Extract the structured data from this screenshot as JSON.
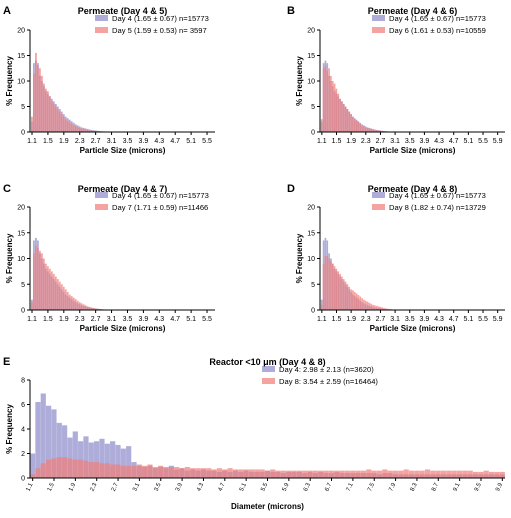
{
  "chart_data": [
    {
      "panel": "A",
      "title": "Permeate (Day 4 & 5)",
      "type": "bar",
      "ylabel": "% Frequency",
      "xlabel": "Particle  Size  (microns)",
      "xlim": [
        1.05,
        5.7
      ],
      "ylim": [
        0,
        20
      ],
      "yticks": [
        "0",
        "5",
        "10",
        "15",
        "20"
      ],
      "xticks": [
        "1.1",
        "1.5",
        "1.9",
        "2.3",
        "2.7",
        "3.1",
        "3.5",
        "3.9",
        "4.3",
        "4.7",
        "5.1",
        "5.5"
      ],
      "bin_width": 0.05,
      "x_start": 1.1,
      "series": [
        {
          "name": "Day 4 (1.65 ± 0.67) n=15773",
          "color": "#8f8ccb",
          "values": [
            2,
            13.5,
            14,
            13.5,
            11,
            10,
            9,
            8,
            7.5,
            7,
            6.5,
            6,
            5.5,
            5,
            4.5,
            4,
            3.5,
            3,
            2.7,
            2.4,
            2.1,
            1.8,
            1.5,
            1.3,
            1.1,
            0.9,
            0.8,
            0.7,
            0.6,
            0.5,
            0.4,
            0.35,
            0.3,
            0.25,
            0.2,
            0.15,
            0.12,
            0.1,
            0.08,
            0.06
          ]
        },
        {
          "name": "Day 5 (1.59 ± 0.53) n= 3597",
          "color": "#f07f7a",
          "values": [
            3,
            11.5,
            15.5,
            13,
            12.5,
            11,
            9.5,
            8.5,
            8,
            7,
            6,
            5.5,
            5,
            4.5,
            4,
            3.5,
            3,
            2.5,
            2.2,
            1.9,
            1.6,
            1.4,
            1.2,
            1,
            0.8,
            0.7,
            0.6,
            0.5,
            0.4,
            0.3,
            0.25,
            0.2,
            0.15,
            0.1,
            0.08,
            0.06,
            0.05,
            0.04,
            0.03,
            0.02
          ]
        }
      ]
    },
    {
      "panel": "B",
      "title": "Permeate (Day 4 & 6)",
      "type": "bar",
      "ylabel": "% Frequency",
      "xlabel": "Particle  Size  (microns)",
      "xlim": [
        1.05,
        6.1
      ],
      "ylim": [
        0,
        20
      ],
      "yticks": [
        "0",
        "5",
        "10",
        "15",
        "20"
      ],
      "xticks": [
        "1.1",
        "1.5",
        "1.9",
        "2.3",
        "2.7",
        "3.1",
        "3.5",
        "3.9",
        "4.3",
        "4.7",
        "5.1",
        "5.5",
        "5.9"
      ],
      "bin_width": 0.05,
      "x_start": 1.1,
      "series": [
        {
          "name": "Day 4 (1.65 ± 0.67) n=15773",
          "color": "#8f8ccb",
          "values": [
            2,
            13.5,
            14,
            13.5,
            11,
            10,
            9,
            8,
            7.5,
            7,
            6.5,
            6,
            5.5,
            5,
            4.5,
            4,
            3.5,
            3,
            2.7,
            2.4,
            2.1,
            1.8,
            1.5,
            1.3,
            1.1,
            0.9,
            0.8,
            0.7,
            0.6,
            0.5,
            0.4,
            0.35,
            0.3,
            0.25,
            0.2,
            0.15,
            0.12,
            0.1,
            0.08,
            0.06
          ]
        },
        {
          "name": "Day 6 (1.61 ± 0.53) n=10559",
          "color": "#f07f7a",
          "values": [
            2.5,
            12.5,
            13,
            12,
            12.5,
            11,
            10,
            9.5,
            8.5,
            7.5,
            6.5,
            6,
            5.5,
            5,
            4.5,
            4,
            3.5,
            3,
            2.6,
            2.2,
            1.9,
            1.6,
            1.3,
            1.1,
            0.9,
            0.8,
            0.7,
            0.6,
            0.5,
            0.4,
            0.35,
            0.3,
            0.25,
            0.2,
            0.15,
            0.1,
            0.08,
            0.06,
            0.05,
            0.04
          ]
        }
      ]
    },
    {
      "panel": "C",
      "title": "Permeate (Day 4 & 7)",
      "type": "bar",
      "ylabel": "% Frequency",
      "xlabel": "Particle  Size  (microns)",
      "xlim": [
        1.05,
        5.7
      ],
      "ylim": [
        0,
        20
      ],
      "yticks": [
        "0",
        "5",
        "10",
        "15",
        "20"
      ],
      "xticks": [
        "1.1",
        "1.5",
        "1.9",
        "2.3",
        "2.7",
        "3.1",
        "3.5",
        "3.9",
        "4.3",
        "4.7",
        "5.1",
        "5.5"
      ],
      "bin_width": 0.05,
      "x_start": 1.1,
      "series": [
        {
          "name": "Day 4 (1.65 ± 0.67) n=15773",
          "color": "#8f8ccb",
          "values": [
            2,
            13.5,
            14,
            13.5,
            11,
            10,
            9,
            8,
            7.5,
            7,
            6.5,
            6,
            5.5,
            5,
            4.5,
            4,
            3.5,
            3,
            2.7,
            2.4,
            2.1,
            1.8,
            1.5,
            1.3,
            1.1,
            0.9,
            0.8,
            0.7,
            0.6,
            0.5,
            0.4,
            0.35,
            0.3,
            0.25,
            0.2,
            0.15,
            0.12,
            0.1,
            0.08,
            0.06
          ]
        },
        {
          "name": "Day 7 (1.71 ± 0.59) n=11466",
          "color": "#f07f7a",
          "values": [
            1.5,
            11,
            12.5,
            12,
            11.5,
            11,
            10,
            9,
            8.5,
            8,
            7.5,
            7,
            6.5,
            6,
            5.5,
            5,
            4.5,
            4,
            3.5,
            3,
            2.7,
            2.4,
            2.1,
            1.8,
            1.5,
            1.3,
            1.1,
            0.9,
            0.7,
            0.6,
            0.5,
            0.4,
            0.3,
            0.25,
            0.2,
            0.15,
            0.1,
            0.08,
            0.06,
            0.05
          ]
        }
      ]
    },
    {
      "panel": "D",
      "title": "Permeate (Day 4 & 8)",
      "type": "bar",
      "ylabel": "% Frequency",
      "xlabel": "Particle  Size  (microns)",
      "xlim": [
        1.05,
        6.1
      ],
      "ylim": [
        0,
        20
      ],
      "yticks": [
        "0",
        "5",
        "10",
        "15",
        "20"
      ],
      "xticks": [
        "1.1",
        "1.5",
        "1.9",
        "2.3",
        "2.7",
        "3.1",
        "3.5",
        "3.9",
        "4.3",
        "4.7",
        "5.1",
        "5.5",
        "5.9"
      ],
      "bin_width": 0.05,
      "x_start": 1.1,
      "series": [
        {
          "name": "Day 4 (1.65 ± 0.67) n=15773",
          "color": "#8f8ccb",
          "values": [
            2,
            13.5,
            14,
            13.5,
            11,
            10,
            9,
            8,
            7.5,
            7,
            6.5,
            6,
            5.5,
            5,
            4.5,
            4,
            3.5,
            3,
            2.7,
            2.4,
            2.1,
            1.8,
            1.5,
            1.3,
            1.1,
            0.9,
            0.8,
            0.7,
            0.6,
            0.5,
            0.4,
            0.35,
            0.3,
            0.25,
            0.2,
            0.15,
            0.12,
            0.1,
            0.08,
            0.06
          ]
        },
        {
          "name": "Day 8 (1.82 ± 0.74) n=13729",
          "color": "#f07f7a",
          "values": [
            1,
            9,
            10.5,
            10.5,
            10,
            9.5,
            9,
            8.5,
            8,
            7.5,
            7,
            6.5,
            6,
            5.5,
            5,
            4.5,
            4,
            3.8,
            3.5,
            3.2,
            2.9,
            2.6,
            2.3,
            2,
            1.8,
            1.6,
            1.4,
            1.2,
            1,
            0.9,
            0.8,
            0.7,
            0.6,
            0.5,
            0.4,
            0.3,
            0.25,
            0.2,
            0.15,
            0.1
          ]
        }
      ]
    },
    {
      "panel": "E",
      "title": "Reactor <10 μm (Day 4 & 8)",
      "type": "bar",
      "ylabel": "% Frequency",
      "xlabel": "Diameter  (microns)",
      "xlim": [
        1.05,
        9.95
      ],
      "ylim": [
        0,
        8
      ],
      "yticks": [
        "0",
        "2",
        "4",
        "6",
        "8"
      ],
      "xticks": [
        "1.1",
        "1.5",
        "1.9",
        "2.3",
        "2.7",
        "3.1",
        "3.5",
        "3.9",
        "4.3",
        "4.7",
        "5.1",
        "5.5",
        "5.9",
        "6.3",
        "6.7",
        "7.1",
        "7.5",
        "7.9",
        "8.3",
        "8.7",
        "9.1",
        "9.5",
        "9.9"
      ],
      "bin_width": 0.1,
      "x_start": 1.1,
      "series": [
        {
          "name": "Day 4: 2.98 ± 2.13 (n=3620)",
          "color": "#8f8ccb",
          "values": [
            2,
            6.2,
            6.9,
            5.9,
            5.6,
            4.5,
            4.3,
            3.3,
            3.8,
            3.0,
            3.4,
            2.9,
            3.0,
            3.2,
            2.8,
            3.0,
            2.7,
            2.4,
            2.6,
            1.3,
            1.0,
            0.9,
            1.0,
            0.8,
            0.9,
            0.8,
            1.0,
            0.7,
            0.8,
            0.6,
            0.7,
            0.6,
            0.7,
            0.6,
            0.6,
            0.5,
            0.6,
            0.5,
            0.6,
            0.5,
            0.6,
            0.5,
            0.5,
            0.5,
            0.6,
            0.5,
            0.5,
            0.4,
            0.5,
            0.5,
            0.5,
            0.4,
            0.5,
            0.4,
            0.5,
            0.4,
            0.4,
            0.5,
            0.4,
            0.4,
            0.4,
            0.4,
            0.4,
            0.4,
            0.4,
            0.3,
            0.4,
            0.4,
            0.3,
            0.3,
            0.3,
            0.3,
            0.3,
            0.3,
            0.3,
            0.3,
            0.3,
            0.3,
            0.3,
            0.3,
            0.3,
            0.3,
            0.3,
            0.3,
            0.3,
            0.3,
            0.3,
            0.3,
            0.3
          ]
        },
        {
          "name": "Day 8: 3.54 ± 2.59 (n=16464)",
          "color": "#f07f7a",
          "values": [
            0.3,
            0.8,
            1.2,
            1.5,
            1.6,
            1.7,
            1.7,
            1.6,
            1.5,
            1.5,
            1.4,
            1.3,
            1.3,
            1.2,
            1.2,
            1.1,
            1.1,
            1.0,
            1.0,
            1.0,
            1.1,
            1.0,
            1.1,
            0.9,
            1.0,
            0.9,
            0.9,
            0.9,
            0.8,
            0.9,
            0.8,
            0.8,
            0.8,
            0.8,
            0.7,
            0.8,
            0.7,
            0.8,
            0.7,
            0.7,
            0.7,
            0.7,
            0.7,
            0.7,
            0.6,
            0.7,
            0.6,
            0.6,
            0.6,
            0.6,
            0.6,
            0.6,
            0.6,
            0.6,
            0.6,
            0.6,
            0.6,
            0.6,
            0.6,
            0.6,
            0.6,
            0.6,
            0.6,
            0.7,
            0.6,
            0.6,
            0.7,
            0.6,
            0.6,
            0.6,
            0.7,
            0.6,
            0.6,
            0.6,
            0.7,
            0.6,
            0.6,
            0.6,
            0.6,
            0.6,
            0.6,
            0.6,
            0.6,
            0.5,
            0.5,
            0.6,
            0.5,
            0.5,
            0.5
          ]
        }
      ]
    }
  ]
}
